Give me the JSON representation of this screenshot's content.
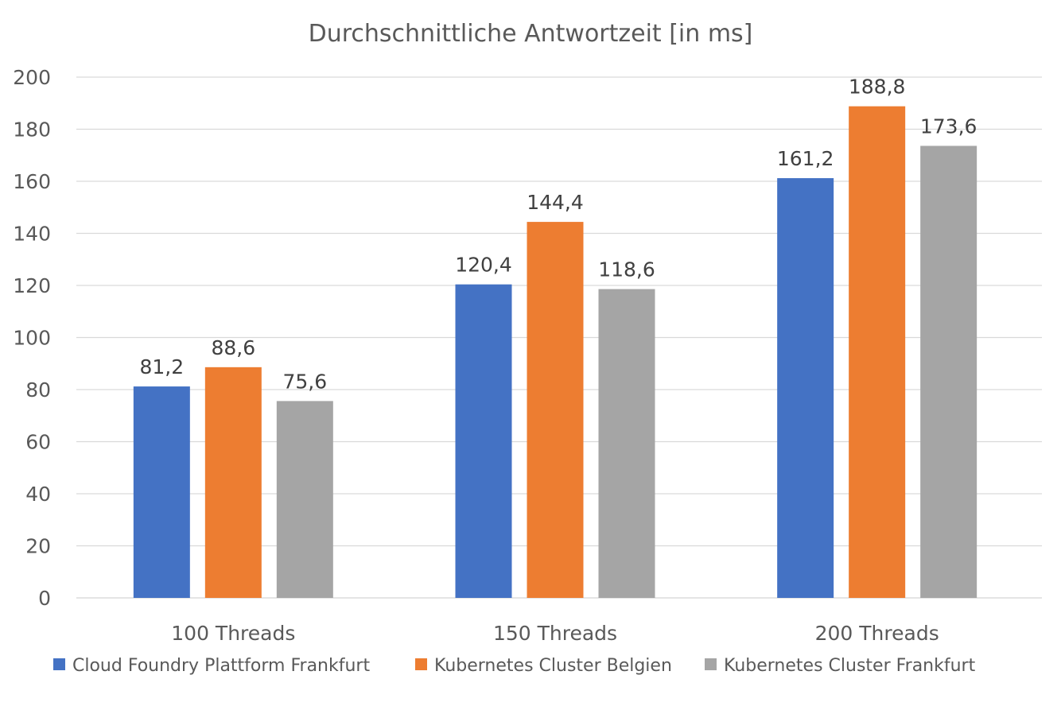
{
  "chart_data": {
    "type": "bar",
    "title": "Durchschnittliche Antwortzeit [in ms]",
    "xlabel": "",
    "ylabel": "",
    "categories": [
      "100 Threads",
      "150 Threads",
      "200 Threads"
    ],
    "series": [
      {
        "name": "Cloud Foundry Plattform Frankfurt",
        "values": [
          81.2,
          120.4,
          161.2
        ],
        "labels": [
          "81,2",
          "120,4",
          "161,2"
        ],
        "color": "#4472C4"
      },
      {
        "name": "Kubernetes Cluster Belgien",
        "values": [
          88.6,
          144.4,
          188.8
        ],
        "labels": [
          "88,6",
          "144,4",
          "188,8"
        ],
        "color": "#ED7D31"
      },
      {
        "name": "Kubernetes Cluster Frankfurt",
        "values": [
          75.6,
          118.6,
          173.6
        ],
        "labels": [
          "75,6",
          "118,6",
          "173,6"
        ],
        "color": "#A5A5A5"
      }
    ],
    "ylim": [
      0,
      200
    ],
    "yticks": [
      0,
      20,
      40,
      60,
      80,
      100,
      120,
      140,
      160,
      180,
      200
    ],
    "grid": true,
    "legend": "bottom"
  }
}
